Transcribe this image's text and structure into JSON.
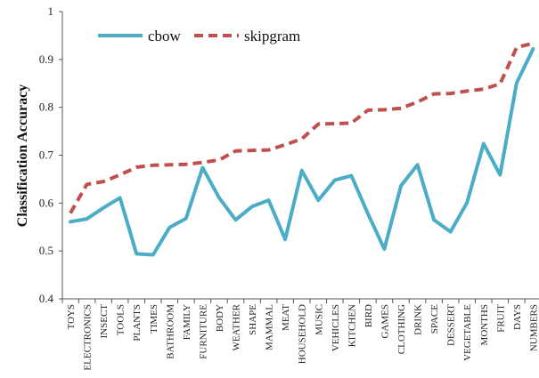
{
  "chart_data": {
    "type": "line",
    "title": "",
    "xlabel": "",
    "ylabel": "Classification Accuracy",
    "ylim": [
      0.4,
      1.0
    ],
    "yticks": [
      "0.4",
      "0.5",
      "0.6",
      "0.7",
      "0.8",
      "0.9",
      "1"
    ],
    "grid": false,
    "legend_position": "top-left",
    "categories": [
      "TOYS",
      "ELECTRONICS",
      "INSECT",
      "TOOLS",
      "PLANTS",
      "TIMES",
      "BATHROOM",
      "FAMILY",
      "FURNITURE",
      "BODY",
      "WEATHER",
      "SHAPE",
      "MAMMAL",
      "MEAT",
      "HOUSEHOLD",
      "MUSIC",
      "VEHICLES",
      "KITCHEN",
      "BIRD",
      "GAMES",
      "CLOTHING",
      "DRINK",
      "SPACE",
      "DESSERT",
      "VEGETABLE",
      "MONTHS",
      "FRUIT",
      "DAYS",
      "NUMBERS"
    ],
    "series": [
      {
        "name": "cbow",
        "color": "#4bacc6",
        "dash": "solid",
        "values": [
          0.561,
          0.567,
          0.59,
          0.611,
          0.494,
          0.492,
          0.549,
          0.568,
          0.674,
          0.611,
          0.565,
          0.593,
          0.606,
          0.524,
          0.668,
          0.606,
          0.648,
          0.657,
          0.578,
          0.504,
          0.636,
          0.68,
          0.565,
          0.54,
          0.601,
          0.724,
          0.659,
          0.851,
          0.922
        ]
      },
      {
        "name": "skipgram",
        "color": "#c0504d",
        "dash": "dashed",
        "values": [
          0.579,
          0.639,
          0.645,
          0.659,
          0.675,
          0.679,
          0.68,
          0.681,
          0.685,
          0.69,
          0.709,
          0.71,
          0.711,
          0.722,
          0.734,
          0.765,
          0.766,
          0.767,
          0.794,
          0.795,
          0.798,
          0.811,
          0.828,
          0.829,
          0.834,
          0.838,
          0.849,
          0.925,
          0.934
        ]
      }
    ]
  }
}
